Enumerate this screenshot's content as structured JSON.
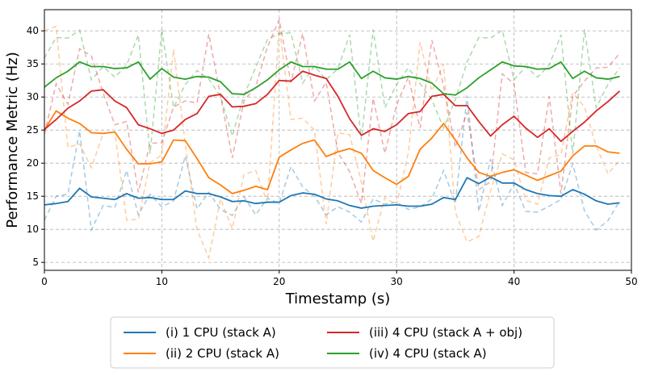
{
  "chart_data": {
    "type": "line",
    "title": "",
    "xlabel": "Timestamp (s)",
    "ylabel": "Performance Metric (Hz)",
    "xlim": [
      0,
      50
    ],
    "ylim": [
      3.8,
      43.2
    ],
    "xticks": [
      0,
      10,
      20,
      30,
      40,
      50
    ],
    "yticks": [
      5,
      10,
      15,
      20,
      25,
      30,
      35,
      40
    ],
    "grid": true,
    "legend_position": "bottom-center",
    "x": [
      0,
      1,
      2,
      3,
      4,
      5,
      6,
      7,
      8,
      9,
      10,
      11,
      12,
      13,
      14,
      15,
      16,
      17,
      18,
      19,
      20,
      21,
      22,
      23,
      24,
      25,
      26,
      27,
      28,
      29,
      30,
      31,
      32,
      33,
      34,
      35,
      36,
      37,
      38,
      39,
      40,
      41,
      42,
      43,
      44,
      45,
      46,
      47,
      48,
      49
    ],
    "series": [
      {
        "name": "(i) 1 CPU (stack A)",
        "color": "#1f77b4",
        "smoothed": [
          13.7,
          13.9,
          14.2,
          16.2,
          14.9,
          14.7,
          14.5,
          15.4,
          14.7,
          14.8,
          14.5,
          14.5,
          15.8,
          15.4,
          15.4,
          14.9,
          14.2,
          14.3,
          13.9,
          14.1,
          14.1,
          15.1,
          15.5,
          15.3,
          14.6,
          14.3,
          13.6,
          13.2,
          13.5,
          13.6,
          13.7,
          13.5,
          13.5,
          13.8,
          14.8,
          14.5,
          17.8,
          16.9,
          17.9,
          17.0,
          17.0,
          16.0,
          15.4,
          15.1,
          15.0,
          16.0,
          15.3,
          14.3,
          13.8,
          14.0
        ],
        "raw": [
          11.4,
          15.0,
          15.3,
          24.9,
          9.9,
          13.6,
          13.3,
          18.9,
          12.2,
          15.3,
          13.4,
          14.3,
          21.1,
          13.1,
          15.6,
          13.0,
          12.1,
          14.9,
          12.2,
          14.7,
          13.9,
          19.5,
          16.4,
          15.0,
          12.2,
          13.4,
          12.6,
          11.1,
          14.6,
          13.8,
          14.1,
          13.0,
          13.4,
          14.6,
          18.9,
          13.9,
          30.2,
          12.7,
          20.6,
          13.6,
          16.9,
          12.7,
          12.6,
          13.5,
          14.5,
          19.9,
          12.8,
          9.9,
          11.3,
          14.3
        ]
      },
      {
        "name": "(ii) 2 CPU (stack A)",
        "color": "#ff7f0e",
        "smoothed": [
          25.0,
          27.9,
          26.8,
          26.0,
          24.6,
          24.5,
          24.7,
          22.1,
          19.9,
          19.9,
          20.2,
          23.5,
          23.4,
          20.7,
          17.8,
          16.7,
          15.4,
          15.9,
          16.5,
          16.0,
          20.9,
          22.0,
          23.0,
          23.5,
          21.0,
          21.7,
          22.2,
          21.5,
          18.9,
          17.8,
          16.8,
          18.0,
          22.1,
          23.8,
          26.0,
          23.5,
          20.8,
          18.6,
          18.0,
          18.6,
          19.0,
          18.2,
          17.4,
          18.1,
          18.8,
          21.1,
          22.6,
          22.6,
          21.7,
          21.5
        ],
        "raw": [
          40.0,
          40.7,
          22.4,
          22.9,
          19.3,
          24.5,
          24.7,
          11.4,
          11.5,
          20.1,
          21.2,
          37.2,
          22.9,
          9.9,
          5.7,
          14.6,
          10.1,
          18.3,
          18.9,
          14.0,
          40.8,
          26.6,
          26.8,
          25.0,
          10.8,
          24.6,
          24.3,
          17.1,
          8.2,
          14.8,
          13.7,
          21.6,
          38.3,
          30.9,
          35.0,
          12.6,
          8.1,
          8.9,
          15.8,
          21.4,
          20.5,
          14.4,
          13.8,
          20.8,
          21.3,
          30.6,
          28.5,
          22.6,
          18.4,
          20.4
        ]
      },
      {
        "name": "(iii) 4 CPU (stack A + obj)",
        "color": "#d62728",
        "smoothed": [
          25.1,
          26.6,
          28.3,
          29.4,
          30.9,
          31.1,
          29.4,
          28.4,
          25.8,
          25.2,
          24.5,
          25.0,
          26.6,
          27.5,
          30.1,
          30.4,
          28.5,
          28.6,
          29.0,
          30.4,
          32.5,
          32.4,
          33.9,
          33.3,
          32.8,
          30.1,
          26.7,
          24.2,
          25.2,
          24.8,
          25.8,
          27.5,
          27.8,
          30.1,
          30.4,
          28.7,
          28.7,
          26.3,
          24.1,
          25.8,
          27.1,
          25.3,
          23.9,
          25.2,
          23.3,
          24.8,
          26.2,
          27.9,
          29.3,
          30.9
        ],
        "raw": [
          24.4,
          32.0,
          28.9,
          37.3,
          36.2,
          30.6,
          25.8,
          26.3,
          15.6,
          23.0,
          23.1,
          28.5,
          29.4,
          29.1,
          39.5,
          30.2,
          20.8,
          29.4,
          31.6,
          37.6,
          41.7,
          32.2,
          39.6,
          29.4,
          32.2,
          21.6,
          18.7,
          13.9,
          29.8,
          21.5,
          28.8,
          33.0,
          25.3,
          38.6,
          31.7,
          22.4,
          27.7,
          16.0,
          17.2,
          33.5,
          32.0,
          18.6,
          18.4,
          30.1,
          15.4,
          30.1,
          32.4,
          34.4,
          34.5,
          36.6
        ]
      },
      {
        "name": "(iv) 4 CPU (stack A)",
        "color": "#2ca02c",
        "smoothed": [
          31.5,
          32.9,
          33.9,
          35.3,
          34.6,
          34.6,
          34.3,
          34.4,
          35.3,
          32.7,
          34.3,
          33.0,
          32.7,
          33.1,
          33.0,
          32.3,
          30.5,
          30.4,
          31.4,
          32.6,
          34.1,
          35.3,
          34.6,
          34.6,
          34.2,
          34.2,
          35.3,
          32.8,
          33.9,
          32.9,
          32.7,
          33.1,
          32.8,
          32.1,
          30.5,
          30.3,
          31.4,
          32.9,
          34.1,
          35.3,
          34.7,
          34.6,
          34.2,
          34.3,
          35.3,
          32.8,
          33.9,
          32.9,
          32.7,
          33.1
        ],
        "raw": [
          35.9,
          39.0,
          38.9,
          40.1,
          32.6,
          34.6,
          33.0,
          34.8,
          39.4,
          21.4,
          40.2,
          28.4,
          31.9,
          34.0,
          32.7,
          30.1,
          24.1,
          30.2,
          34.5,
          38.7,
          39.6,
          39.7,
          32.1,
          34.7,
          32.6,
          34.3,
          39.4,
          23.5,
          40.2,
          28.4,
          31.9,
          34.4,
          32.0,
          29.6,
          25.3,
          29.6,
          35.3,
          39.0,
          38.9,
          40.1,
          32.6,
          34.6,
          33.0,
          34.8,
          39.4,
          21.4,
          40.2,
          28.4,
          31.9,
          34.4
        ]
      }
    ]
  }
}
